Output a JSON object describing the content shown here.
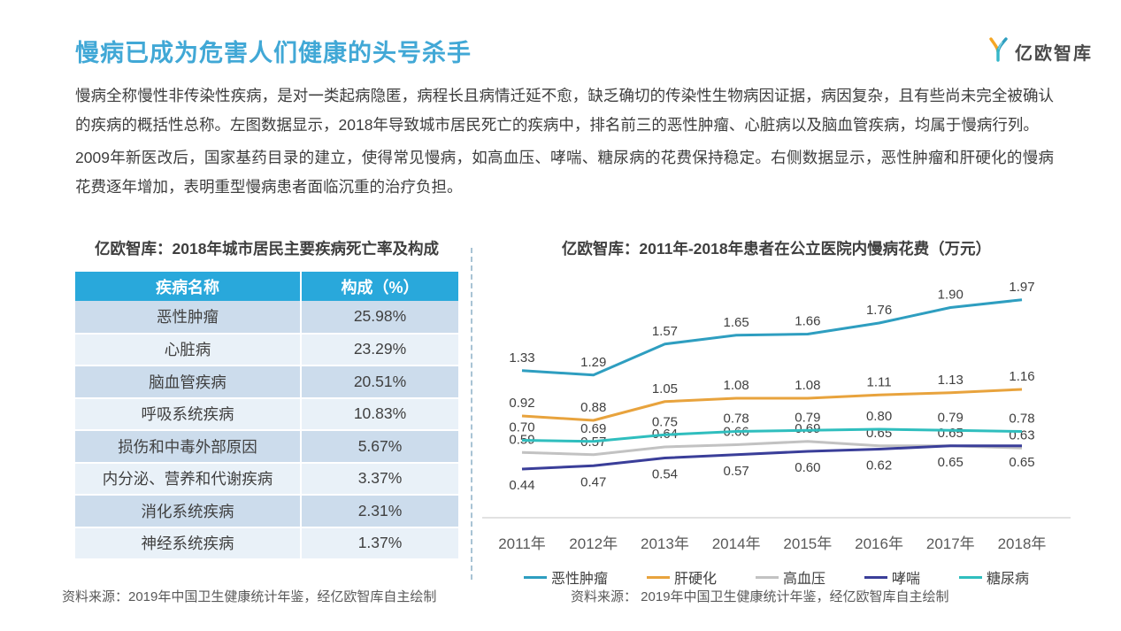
{
  "page": {
    "title": "慢病已成为危害人们健康的头号杀手",
    "logo_text": "亿欧智库",
    "paragraphs": [
      "慢病全称慢性非传染性疾病，是对一类起病隐匿，病程长且病情迁延不愈，缺乏确切的传染性生物病因证据，病因复杂，且有些尚未完全被确认的疾病的概括性总称。左图数据显示，2018年导致城市居民死亡的疾病中，排名前三的恶性肿瘤、心脏病以及脑血管疾病，均属于慢病行列。",
      "2009年新医改后，国家基药目录的建立，使得常见慢病，如高血压、哮喘、糖尿病的花费保持稳定。右侧数据显示，恶性肿瘤和肝硬化的慢病花费逐年增加，表明重型慢病患者面临沉重的治疗负担。"
    ],
    "colors": {
      "title_blue": "#41a8d6",
      "table_header_blue": "#29a8db",
      "row_dark": "#ccdcec",
      "row_light": "#e9f1f8",
      "axis_gray": "#d9d9d9"
    }
  },
  "chart_data": [
    {
      "type": "line",
      "title": "亿欧智库：2011年-2018年患者在公立医院内慢病花费（万元）",
      "categories": [
        "2011年",
        "2012年",
        "2013年",
        "2014年",
        "2015年",
        "2016年",
        "2017年",
        "2018年"
      ],
      "series": [
        {
          "name": "恶性肿瘤",
          "color": "#2e9ec0",
          "label_position": "above",
          "values": [
            1.33,
            1.29,
            1.57,
            1.65,
            1.66,
            1.76,
            1.9,
            1.97
          ]
        },
        {
          "name": "肝硬化",
          "color": "#e8a33d",
          "label_position": "above",
          "values": [
            0.92,
            0.88,
            1.05,
            1.08,
            1.08,
            1.11,
            1.13,
            1.16
          ]
        },
        {
          "name": "高血压",
          "color": "#c2c2c2",
          "label_position": "above",
          "values": [
            0.59,
            0.57,
            0.64,
            0.66,
            0.69,
            0.65,
            0.65,
            0.63
          ]
        },
        {
          "name": "哮喘",
          "color": "#3a3e99",
          "label_position": "below",
          "values": [
            0.44,
            0.47,
            0.54,
            0.57,
            0.6,
            0.62,
            0.65,
            0.65
          ]
        },
        {
          "name": "糖尿病",
          "color": "#2fbebe",
          "label_position": "above",
          "values": [
            0.7,
            0.69,
            0.75,
            0.78,
            0.79,
            0.8,
            0.79,
            0.78
          ]
        }
      ],
      "ylim": [
        0,
        2.2
      ],
      "grid": false,
      "legend_position": "bottom",
      "source": "资料来源： 2019年中国卫生健康统计年鉴，经亿欧智库自主绘制"
    },
    {
      "type": "table",
      "title": "亿欧智库：2018年城市居民主要疾病死亡率及构成",
      "headers": [
        "疾病名称",
        "构成（%）"
      ],
      "rows": [
        [
          "恶性肿瘤",
          "25.98%"
        ],
        [
          "心脏病",
          "23.29%"
        ],
        [
          "脑血管疾病",
          "20.51%"
        ],
        [
          "呼吸系统疾病",
          "10.83%"
        ],
        [
          "损伤和中毒外部原因",
          "5.67%"
        ],
        [
          "内分泌、营养和代谢疾病",
          "3.37%"
        ],
        [
          "消化系统疾病",
          "2.31%"
        ],
        [
          "神经系统疾病",
          "1.37%"
        ]
      ],
      "source": "资料来源：2019年中国卫生健康统计年鉴，经亿欧智库自主绘制"
    }
  ]
}
